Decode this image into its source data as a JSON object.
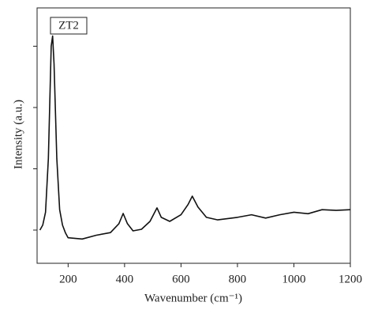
{
  "chart_data": {
    "type": "line",
    "annotation": "ZT2",
    "xlabel": "Wavenumber (cm⁻¹)",
    "ylabel": "Intensity (a.u.)",
    "x": [
      100,
      110,
      120,
      130,
      140,
      145,
      150,
      160,
      170,
      180,
      190,
      200,
      250,
      300,
      350,
      380,
      395,
      410,
      430,
      460,
      490,
      515,
      530,
      560,
      600,
      625,
      640,
      660,
      690,
      730,
      800,
      850,
      900,
      950,
      1000,
      1050,
      1100,
      1150,
      1200
    ],
    "series": [
      {
        "color": "#111111",
        "values": [
          13,
          15,
          20,
          41,
          85,
          89,
          78,
          41,
          21,
          15,
          12,
          10,
          9.5,
          11,
          12,
          15.5,
          19.5,
          15.5,
          12.7,
          13.3,
          16.4,
          21.7,
          18,
          16.4,
          19,
          23,
          26.3,
          22,
          18,
          17,
          18,
          19,
          17.7,
          19,
          20,
          19.4,
          21,
          20.7,
          21
        ]
      }
    ],
    "xlim": [
      90,
      1200
    ],
    "xticks": [
      200,
      400,
      600,
      800,
      1000,
      1200
    ],
    "ylim": [
      0,
      100
    ],
    "yticks": [
      13,
      37,
      61,
      85
    ]
  }
}
